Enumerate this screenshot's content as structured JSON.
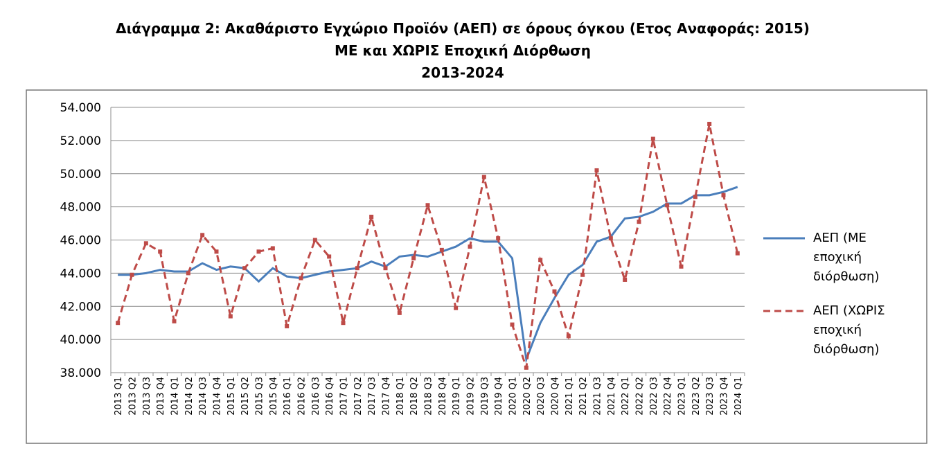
{
  "chart_data": {
    "type": "line",
    "title": [
      "Διάγραμμα 2: Ακαθάριστο Εγχώριο Προϊόν (ΑΕΠ) σε όρους όγκου (Ετος Αναφοράς: 2015)",
      "ΜΕ και ΧΩΡΙΣ Εποχική Διόρθωση",
      "2013-2024"
    ],
    "categories": [
      "2013 Q1",
      "2013 Q2",
      "2013 Q3",
      "2013 Q4",
      "2014 Q1",
      "2014 Q2",
      "2014 Q3",
      "2014 Q4",
      "2015 Q1",
      "2015 Q2",
      "2015 Q3",
      "2015 Q4",
      "2016 Q1",
      "2016 Q2",
      "2016 Q3",
      "2016 Q4",
      "2017 Q1",
      "2017 Q2",
      "2017 Q3",
      "2017 Q4",
      "2018 Q1",
      "2018 Q2",
      "2018 Q3",
      "2018 Q4",
      "2019 Q1",
      "2019 Q2",
      "2019 Q3",
      "2019 Q4",
      "2020 Q1",
      "2020 Q2",
      "2020 Q3",
      "2020 Q4",
      "2021 Q1",
      "2021 Q2",
      "2021 Q3",
      "2021 Q4",
      "2022 Q1",
      "2022 Q2",
      "2022 Q3",
      "2022 Q4",
      "2023 Q1",
      "2023 Q2",
      "2023 Q3",
      "2023 Q4",
      "2024 Q1"
    ],
    "series": [
      {
        "name": "ΑΕΠ (ΜΕ εποχική διόρθωση)",
        "color": "#4a7ebb",
        "dashed": false,
        "values": [
          43900,
          43900,
          44000,
          44200,
          44100,
          44100,
          44600,
          44200,
          44400,
          44300,
          43500,
          44300,
          43800,
          43700,
          43900,
          44100,
          44200,
          44300,
          44700,
          44400,
          45000,
          45100,
          45000,
          45300,
          45600,
          46100,
          45900,
          45900,
          44900,
          38800,
          41000,
          42500,
          43900,
          44500,
          45900,
          46200,
          47300,
          47400,
          47700,
          48200,
          48200,
          48700,
          48700,
          48900,
          49200
        ]
      },
      {
        "name": "ΑΕΠ (ΧΩΡΙΣ εποχική διόρθωση)",
        "color": "#be4b48",
        "dashed": true,
        "values": [
          41000,
          43900,
          45800,
          45300,
          41100,
          44000,
          46300,
          45300,
          41400,
          44300,
          45300,
          45500,
          40800,
          43700,
          46000,
          45000,
          41000,
          44300,
          47400,
          44300,
          41600,
          44900,
          48100,
          45400,
          41900,
          45600,
          49800,
          46100,
          40900,
          38300,
          44800,
          42900,
          40200,
          43900,
          50200,
          46100,
          43600,
          47100,
          52100,
          48100,
          44400,
          48600,
          53000,
          48700,
          45200
        ]
      }
    ],
    "ylim": [
      38000,
      54000
    ],
    "yticks": [
      {
        "value": 38000,
        "label": "38.000"
      },
      {
        "value": 40000,
        "label": "40.000"
      },
      {
        "value": 42000,
        "label": "42.000"
      },
      {
        "value": 44000,
        "label": "44.000"
      },
      {
        "value": 46000,
        "label": "46.000"
      },
      {
        "value": 48000,
        "label": "48.000"
      },
      {
        "value": 50000,
        "label": "50.000"
      },
      {
        "value": 52000,
        "label": "52.000"
      },
      {
        "value": 54000,
        "label": "54.000"
      }
    ],
    "grid": true
  }
}
